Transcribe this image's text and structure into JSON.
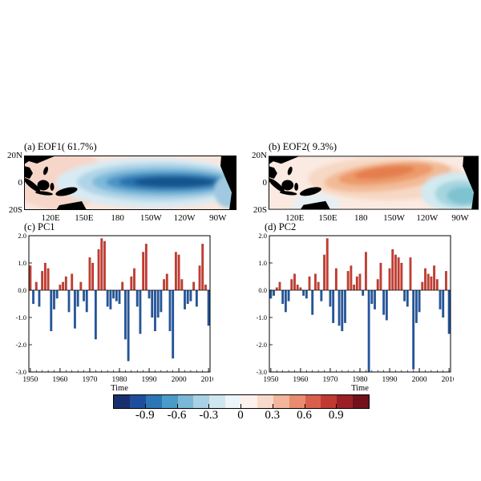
{
  "figure": {
    "map_axes": {
      "lat_ticks": [
        "20N",
        "0",
        "20S"
      ],
      "lon_ticks": [
        "120E",
        "150E",
        "180",
        "150W",
        "120W",
        "90W"
      ]
    },
    "time_axis_label": "Time",
    "colors": {
      "bar_positive": "#c93a2e",
      "bar_negative": "#2256a0",
      "land": "#000000",
      "map_background_warm": "#f9e6de",
      "map_core_cold": "#17538c",
      "map_core_warm": "#e47e4e"
    }
  },
  "chart_data": [
    {
      "type": "heatmap",
      "subtype": "filled-contour-map",
      "title": "(a) EOF1( 61.7%)",
      "variance_pct": 61.7,
      "xticks": [
        "120E",
        "150E",
        "180",
        "150W",
        "120W",
        "90W"
      ],
      "yticks": [
        "20N",
        "0",
        "20S"
      ],
      "pattern_summary": "Strong negative (dark blue) anomaly across central-eastern equatorial Pacific extending to South American coast; weak positive (light pink) in far western Pacific; black land mask over Maritime Continent and Americas.",
      "value_range": [
        -1.2,
        1.2
      ]
    },
    {
      "type": "heatmap",
      "subtype": "filled-contour-map",
      "title": "(b) EOF2(  9.3%)",
      "variance_pct": 9.3,
      "xticks": [
        "120E",
        "150E",
        "180",
        "150W",
        "120W",
        "90W"
      ],
      "yticks": [
        "20N",
        "0",
        "20S"
      ],
      "pattern_summary": "Positive (orange) anomaly band over central Pacific north of the equator; negative (light blue-teal) anomaly in eastern equatorial Pacific near South America; weak warm background elsewhere.",
      "value_range": [
        -1.2,
        1.2
      ]
    },
    {
      "type": "bar",
      "title": "(c) PC1",
      "xlabel": "Time",
      "ylim": [
        -3.0,
        2.0
      ],
      "yticks": [
        2.0,
        1.0,
        0.0,
        -1.0,
        -2.0,
        -3.0
      ],
      "xticks": [
        1950,
        1960,
        1970,
        1980,
        1990,
        2000,
        2010
      ],
      "x": [
        1950,
        1951,
        1952,
        1953,
        1954,
        1955,
        1956,
        1957,
        1958,
        1959,
        1960,
        1961,
        1962,
        1963,
        1964,
        1965,
        1966,
        1967,
        1968,
        1969,
        1970,
        1971,
        1972,
        1973,
        1974,
        1975,
        1976,
        1977,
        1978,
        1979,
        1980,
        1981,
        1982,
        1983,
        1984,
        1985,
        1986,
        1987,
        1988,
        1989,
        1990,
        1991,
        1992,
        1993,
        1994,
        1995,
        1996,
        1997,
        1998,
        1999,
        2000,
        2001,
        2002,
        2003,
        2004,
        2005,
        2006,
        2007,
        2008,
        2009,
        2010
      ],
      "values": [
        0.9,
        -0.5,
        0.3,
        -0.6,
        0.7,
        1.0,
        0.8,
        -1.5,
        -0.7,
        -0.3,
        0.2,
        0.3,
        0.5,
        -0.8,
        0.6,
        -1.4,
        -0.6,
        0.3,
        -0.4,
        -0.8,
        1.2,
        1.0,
        -1.8,
        1.5,
        1.9,
        1.8,
        -0.6,
        -0.7,
        -0.3,
        -0.4,
        -0.5,
        0.3,
        -1.8,
        -2.6,
        0.5,
        0.8,
        -0.6,
        -1.6,
        1.4,
        1.7,
        -0.3,
        -1.0,
        -1.5,
        -1.0,
        -0.8,
        0.4,
        0.6,
        -1.5,
        -2.5,
        1.4,
        1.3,
        0.4,
        -0.7,
        -0.5,
        -0.4,
        0.3,
        -0.6,
        0.9,
        1.7,
        0.2,
        -1.3
      ]
    },
    {
      "type": "bar",
      "title": "(d) PC2",
      "xlabel": "Time",
      "ylim": [
        -3.0,
        2.0
      ],
      "yticks": [
        2.0,
        1.0,
        0.0,
        -1.0,
        -2.0,
        -3.0
      ],
      "xticks": [
        1950,
        1960,
        1970,
        1980,
        1990,
        2000,
        2010
      ],
      "x": [
        1950,
        1951,
        1952,
        1953,
        1954,
        1955,
        1956,
        1957,
        1958,
        1959,
        1960,
        1961,
        1962,
        1963,
        1964,
        1965,
        1966,
        1967,
        1968,
        1969,
        1970,
        1971,
        1972,
        1973,
        1974,
        1975,
        1976,
        1977,
        1978,
        1979,
        1980,
        1981,
        1982,
        1983,
        1984,
        1985,
        1986,
        1987,
        1988,
        1989,
        1990,
        1991,
        1992,
        1993,
        1994,
        1995,
        1996,
        1997,
        1998,
        1999,
        2000,
        2001,
        2002,
        2003,
        2004,
        2005,
        2006,
        2007,
        2008,
        2009,
        2010
      ],
      "values": [
        -0.3,
        -0.2,
        0.1,
        0.3,
        -0.5,
        -0.8,
        -0.4,
        0.4,
        0.6,
        0.2,
        0.1,
        -0.2,
        -0.3,
        0.5,
        -0.9,
        0.6,
        0.3,
        -0.4,
        1.3,
        1.9,
        -0.6,
        -1.2,
        0.8,
        -1.3,
        -1.5,
        -1.2,
        0.7,
        0.9,
        0.2,
        0.5,
        0.6,
        -0.2,
        1.4,
        -3.0,
        -0.5,
        -0.7,
        0.4,
        1.0,
        -0.9,
        -1.1,
        0.8,
        1.5,
        1.3,
        1.2,
        1.0,
        -0.4,
        -0.6,
        1.2,
        -2.9,
        -1.2,
        -0.8,
        0.3,
        0.8,
        0.6,
        0.5,
        0.9,
        0.4,
        -0.7,
        -1.0,
        0.7,
        -1.6
      ]
    },
    {
      "type": "colorbar",
      "tick_labels": [
        "-0.9",
        "-0.6",
        "-0.3",
        "0",
        "0.3",
        "0.6",
        "0.9"
      ],
      "colors": [
        "#16306e",
        "#1f4e9c",
        "#2d76b5",
        "#4a9bc7",
        "#7ab8d6",
        "#a8d2e4",
        "#cfe6f0",
        "#ecf5f9",
        "#fdf1ec",
        "#f9d9cc",
        "#f3b59b",
        "#e88b6f",
        "#d95f4c",
        "#c03a33",
        "#9c1f28",
        "#72101d"
      ]
    }
  ]
}
